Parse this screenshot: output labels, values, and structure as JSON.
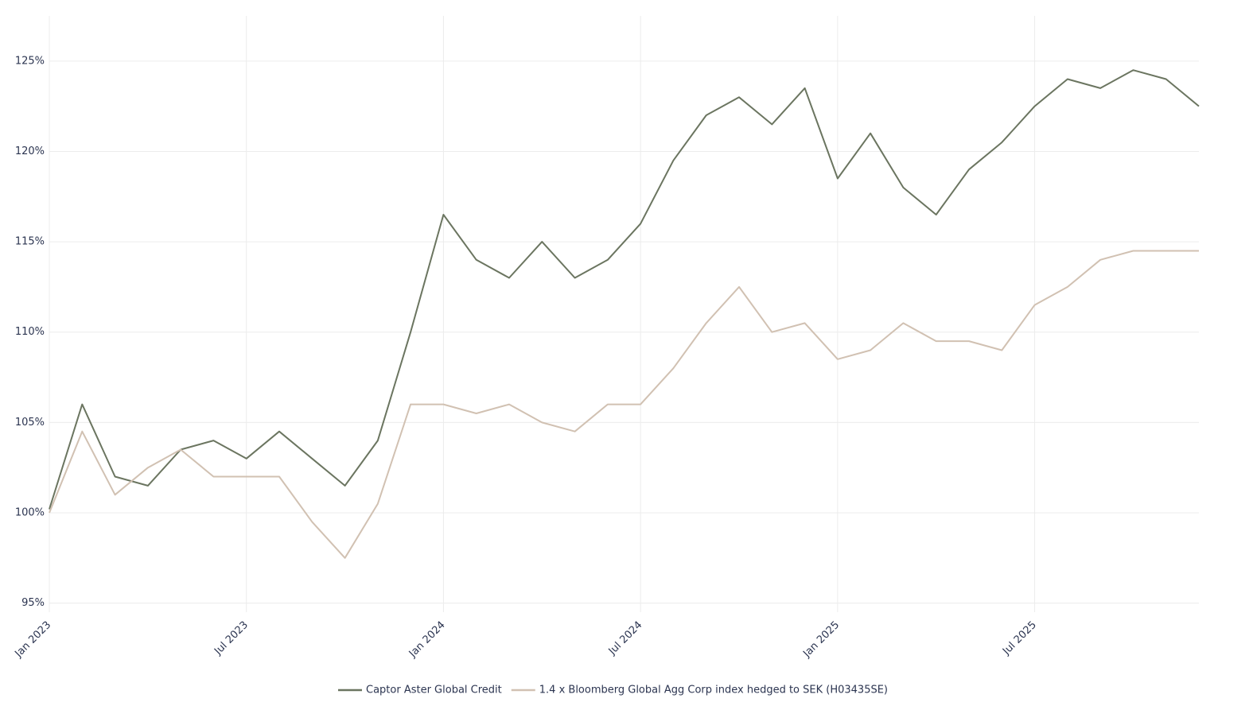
{
  "chart_data": {
    "type": "line",
    "x": [
      "2023-01",
      "2023-02",
      "2023-03",
      "2023-04",
      "2023-05",
      "2023-06",
      "2023-07",
      "2023-08",
      "2023-09",
      "2023-10",
      "2023-11",
      "2023-12",
      "2024-01",
      "2024-02",
      "2024-03",
      "2024-04",
      "2024-05",
      "2024-06",
      "2024-07",
      "2024-08",
      "2024-09",
      "2024-10",
      "2024-11",
      "2024-12",
      "2025-01",
      "2025-02",
      "2025-03",
      "2025-04",
      "2025-05",
      "2025-06",
      "2025-07",
      "2025-08",
      "2025-09",
      "2025-10",
      "2025-11",
      "2025-12"
    ],
    "series": [
      {
        "name": "Captor Aster Global Credit",
        "color": "#6b7560",
        "values": [
          100.2,
          106,
          102,
          101.5,
          103.5,
          104,
          103,
          104.5,
          103,
          101.5,
          104,
          110,
          116.5,
          114,
          113,
          115,
          113,
          114,
          116,
          119.5,
          122,
          123,
          121.5,
          123.5,
          118.5,
          121,
          118,
          116.5,
          119,
          120.5,
          122.5,
          124,
          123.5,
          124.5,
          124,
          122.5
        ]
      },
      {
        "name": "1.4 x Bloomberg Global Agg Corp index hedged to SEK (H03435SE)",
        "color": "#d1c1b2",
        "values": [
          100,
          104.5,
          101,
          102.5,
          103.5,
          102,
          102,
          102,
          99.5,
          97.5,
          100.5,
          106,
          106,
          105.5,
          106,
          105,
          104.5,
          106,
          106,
          108,
          110.5,
          112.5,
          110,
          110.5,
          108.5,
          109,
          110.5,
          109.5,
          109.5,
          109,
          111.5,
          112.5,
          114,
          114.5,
          114.5,
          114.5
        ]
      }
    ],
    "xlim": [
      "2023-01",
      "2025-12"
    ],
    "xticks": [
      {
        "value": "2023-01",
        "label": "Jan 2023"
      },
      {
        "value": "2023-07",
        "label": "Jul 2023"
      },
      {
        "value": "2024-01",
        "label": "Jan 2024"
      },
      {
        "value": "2024-07",
        "label": "Jul 2024"
      },
      {
        "value": "2025-01",
        "label": "Jan 2025"
      },
      {
        "value": "2025-07",
        "label": "Jul 2025"
      }
    ],
    "ylim": [
      94.5,
      127.5
    ],
    "yticks": [
      {
        "value": 95,
        "label": "95%"
      },
      {
        "value": 100,
        "label": "100%"
      },
      {
        "value": 105,
        "label": "105%"
      },
      {
        "value": 110,
        "label": "110%"
      },
      {
        "value": 115,
        "label": "115%"
      },
      {
        "value": 120,
        "label": "120%"
      },
      {
        "value": 125,
        "label": "125%"
      }
    ],
    "grid": true,
    "legend": "bottom"
  }
}
